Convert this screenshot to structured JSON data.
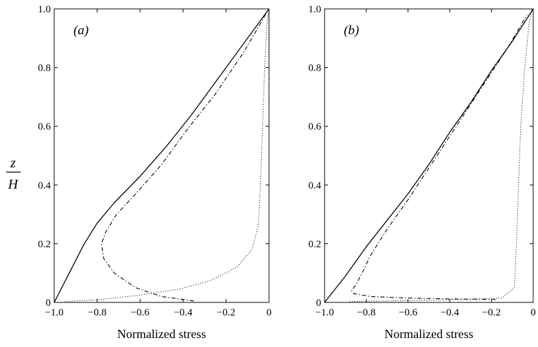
{
  "figure": {
    "ylabel_numerator": "z",
    "ylabel_denominator": "H"
  },
  "chart_data": [
    {
      "type": "line",
      "panel_label": "(a)",
      "xlabel": "Normalized stress",
      "xlim": [
        -1.0,
        0
      ],
      "ylim": [
        0,
        1.0
      ],
      "xticks": [
        -1.0,
        -0.8,
        -0.6,
        -0.4,
        -0.2,
        0
      ],
      "xtick_labels": [
        "−1.0",
        "−0.8",
        "−0.6",
        "−0.4",
        "−0.2",
        "0"
      ],
      "yticks": [
        0,
        0.2,
        0.4,
        0.6,
        0.8,
        1.0
      ],
      "ytick_labels": [
        "0",
        "0.2",
        "0.4",
        "0.6",
        "0.8",
        "1.0"
      ],
      "series": [
        {
          "style": "solid",
          "x": [
            -1.0,
            -0.93,
            -0.86,
            -0.8,
            -0.72,
            -0.6,
            -0.48,
            -0.36,
            -0.24,
            -0.12,
            0
          ],
          "y": [
            0,
            0.1,
            0.2,
            0.27,
            0.34,
            0.43,
            0.53,
            0.64,
            0.76,
            0.88,
            1.0
          ]
        },
        {
          "style": "dashdot",
          "x": [
            -0.35,
            -0.5,
            -0.62,
            -0.72,
            -0.77,
            -0.78,
            -0.76,
            -0.71,
            -0.62,
            -0.5,
            -0.38,
            -0.25,
            -0.12,
            -0.04,
            -0.01
          ],
          "y": [
            0.005,
            0.02,
            0.05,
            0.1,
            0.15,
            0.2,
            0.24,
            0.3,
            0.37,
            0.47,
            0.59,
            0.71,
            0.85,
            0.95,
            0.99
          ]
        },
        {
          "style": "dotted",
          "x": [
            -0.95,
            -0.78,
            -0.6,
            -0.42,
            -0.27,
            -0.15,
            -0.08,
            -0.05,
            -0.04,
            -0.03,
            -0.02,
            -0.01,
            0
          ],
          "y": [
            0.003,
            0.01,
            0.025,
            0.045,
            0.075,
            0.12,
            0.18,
            0.26,
            0.4,
            0.6,
            0.8,
            0.95,
            1.0
          ]
        }
      ]
    },
    {
      "type": "line",
      "panel_label": "(b)",
      "xlabel": "Normalized stress",
      "xlim": [
        -1.0,
        0
      ],
      "ylim": [
        0,
        1.0
      ],
      "xticks": [
        -1.0,
        -0.8,
        -0.6,
        -0.4,
        -0.2,
        0
      ],
      "xtick_labels": [
        "−1.0",
        "−0.8",
        "−0.6",
        "−0.4",
        "−0.2",
        "0"
      ],
      "yticks": [
        0,
        0.2,
        0.4,
        0.6,
        0.8,
        1.0
      ],
      "ytick_labels": [
        "0",
        "0.2",
        "0.4",
        "0.6",
        "0.8",
        "1.0"
      ],
      "series": [
        {
          "style": "solid",
          "x": [
            -1.0,
            -0.9,
            -0.8,
            -0.7,
            -0.6,
            -0.5,
            -0.4,
            -0.3,
            -0.2,
            -0.1,
            0
          ],
          "y": [
            0,
            0.09,
            0.19,
            0.28,
            0.37,
            0.47,
            0.58,
            0.68,
            0.79,
            0.89,
            1.0
          ]
        },
        {
          "style": "dashdot",
          "x": [
            -0.18,
            -0.4,
            -0.6,
            -0.78,
            -0.86,
            -0.87,
            -0.85,
            -0.82,
            -0.78,
            -0.7,
            -0.6,
            -0.48,
            -0.36,
            -0.24,
            -0.12,
            -0.03
          ],
          "y": [
            0.01,
            0.012,
            0.015,
            0.02,
            0.03,
            0.04,
            0.06,
            0.1,
            0.16,
            0.25,
            0.35,
            0.48,
            0.61,
            0.74,
            0.87,
            0.98
          ]
        },
        {
          "style": "dotted",
          "x": [
            -0.88,
            -0.6,
            -0.35,
            -0.15,
            -0.09,
            -0.08,
            -0.07,
            -0.06,
            -0.04,
            -0.02,
            -0.005
          ],
          "y": [
            0.003,
            0.006,
            0.01,
            0.015,
            0.05,
            0.2,
            0.4,
            0.6,
            0.8,
            0.95,
            1.0
          ]
        }
      ]
    }
  ]
}
